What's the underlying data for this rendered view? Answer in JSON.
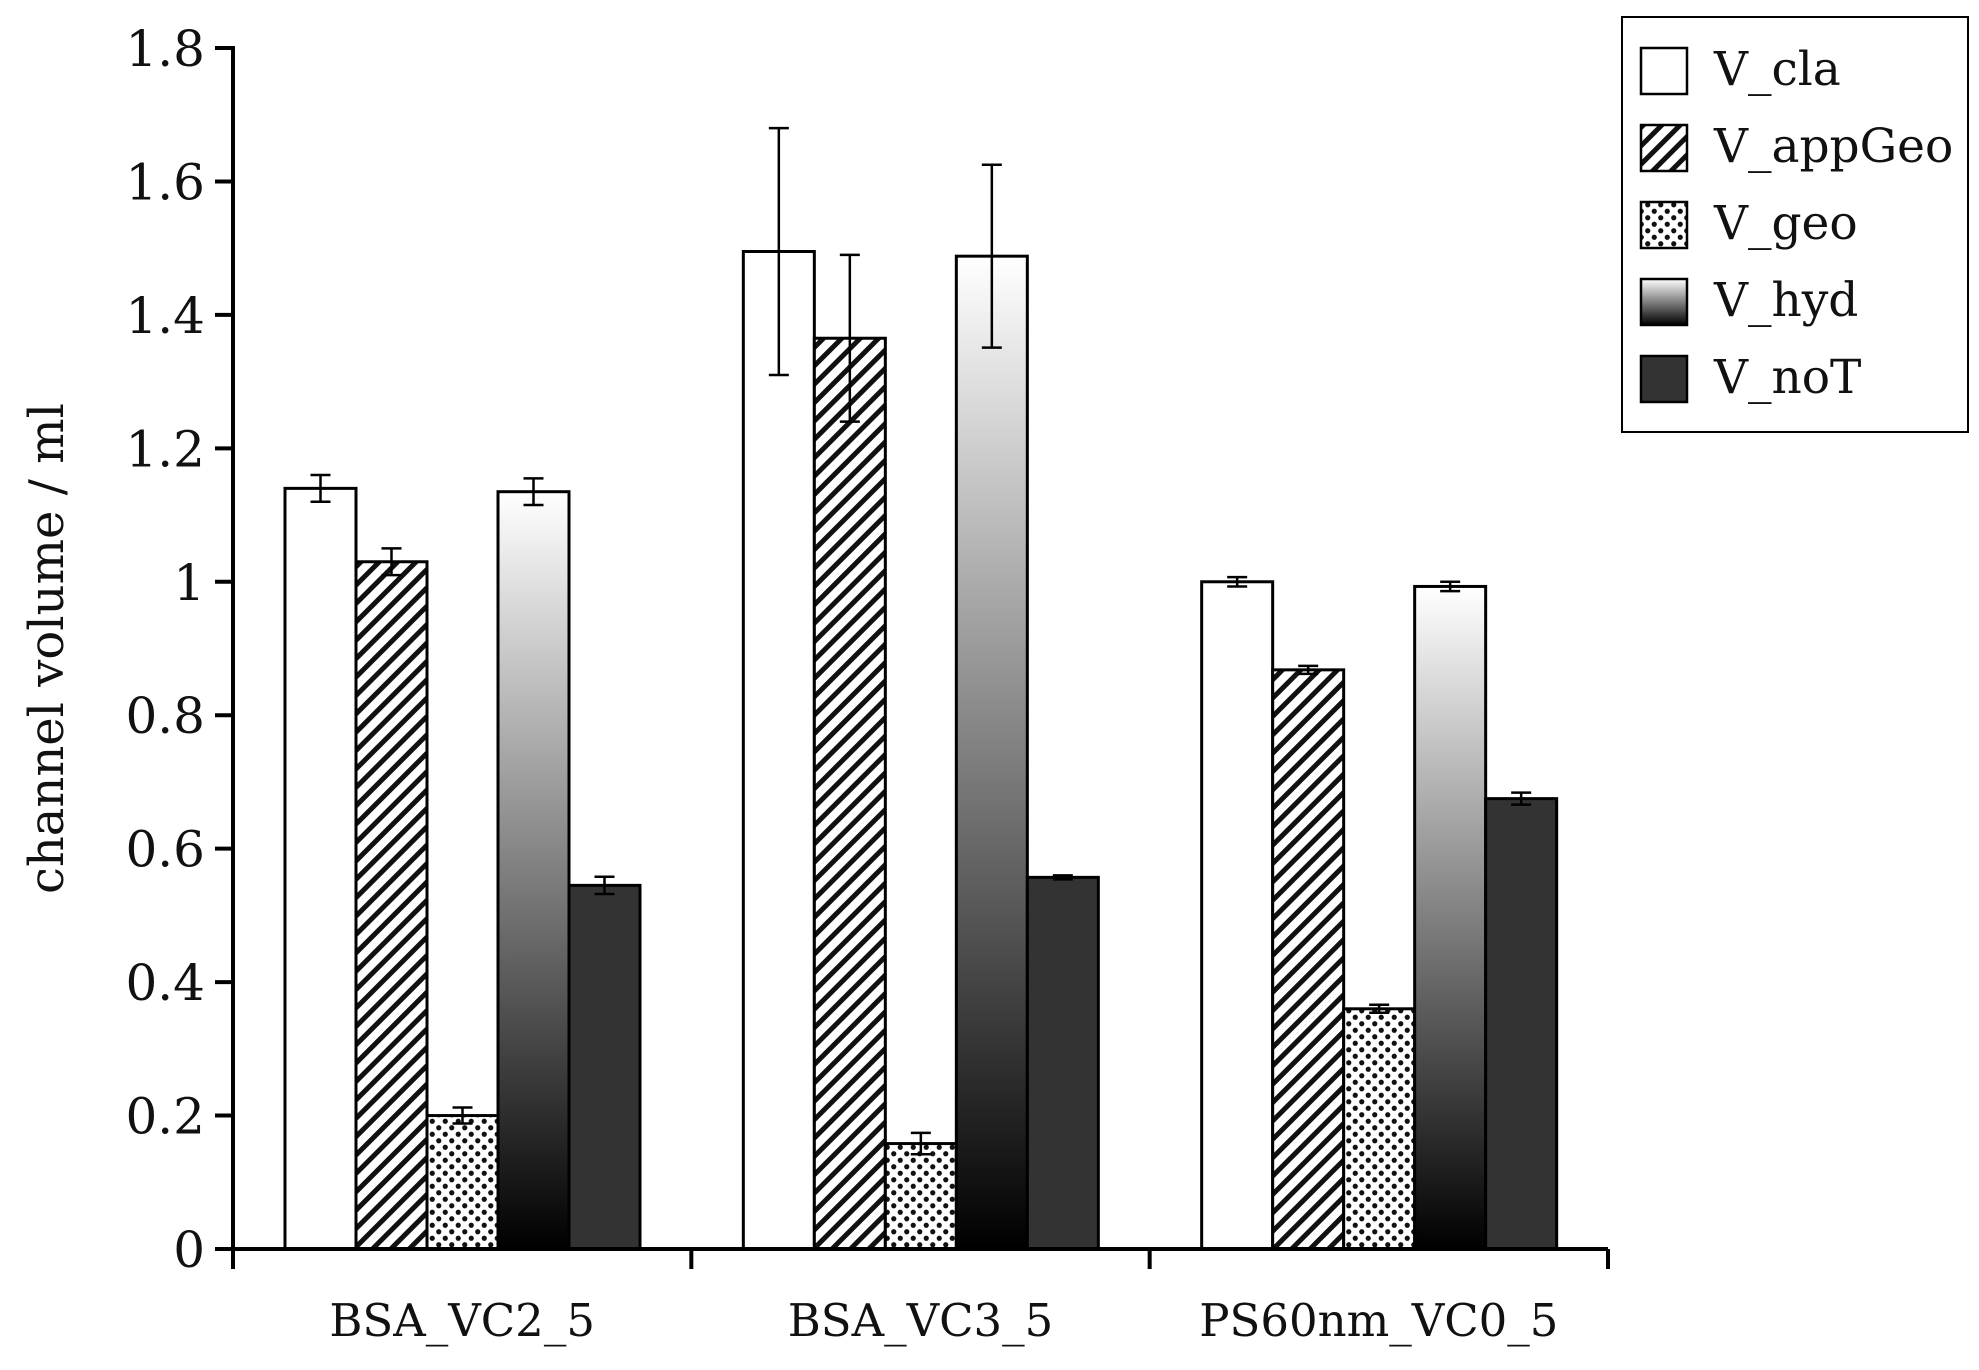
{
  "chart_data": {
    "type": "bar",
    "title": "",
    "xlabel": "",
    "ylabel": "channel volume / ml",
    "ylim": [
      0,
      1.8
    ],
    "yticks": [
      0,
      0.2,
      0.4,
      0.6,
      0.8,
      1,
      1.2,
      1.4,
      1.6,
      1.8
    ],
    "ytick_labels": [
      "0",
      "0.2",
      "0.4",
      "0.6",
      "0.8",
      "1",
      "1.2",
      "1.4",
      "1.6",
      "1.8"
    ],
    "categories": [
      "BSA_VC2_5",
      "BSA_VC3_5",
      "PS60nm_VC0_5"
    ],
    "grid": false,
    "legend_position": "top-right",
    "series": [
      {
        "name": "V_cla",
        "pattern": "white",
        "values": [
          1.14,
          1.495,
          1.0
        ],
        "errors": [
          0.02,
          0.185,
          0.007
        ]
      },
      {
        "name": "V_appGeo",
        "pattern": "hatch",
        "values": [
          1.03,
          1.365,
          0.868
        ],
        "errors": [
          0.02,
          0.125,
          0.006
        ]
      },
      {
        "name": "V_geo",
        "pattern": "dots",
        "values": [
          0.2,
          0.158,
          0.36
        ],
        "errors": [
          0.012,
          0.016,
          0.006
        ]
      },
      {
        "name": "V_hyd",
        "pattern": "gradient",
        "values": [
          1.135,
          1.488,
          0.993
        ],
        "errors": [
          0.02,
          0.137,
          0.007
        ]
      },
      {
        "name": "V_noT",
        "pattern": "dark",
        "values": [
          0.545,
          0.557,
          0.675
        ],
        "errors": [
          0.013,
          0.003,
          0.009
        ]
      }
    ]
  }
}
